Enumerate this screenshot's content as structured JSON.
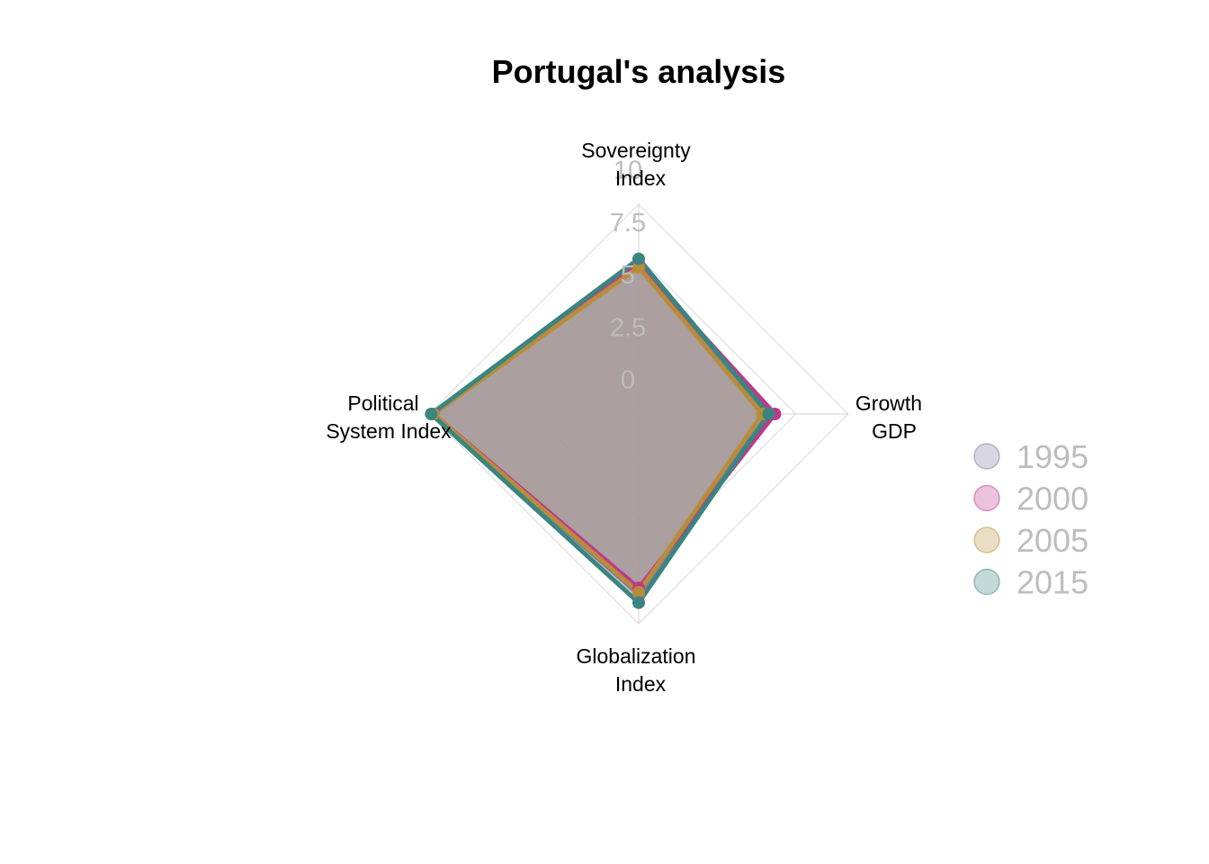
{
  "chart_data": {
    "type": "radar",
    "title": "Portugal's analysis",
    "axes": [
      [
        "Sovereignty",
        "Index"
      ],
      [
        "Growth",
        "GDP"
      ],
      [
        "Globalization",
        "Index"
      ],
      [
        "Political",
        "System Index"
      ]
    ],
    "axis_order": [
      "top",
      "right",
      "bottom",
      "left"
    ],
    "range": [
      0,
      10
    ],
    "ticks": [
      "0",
      "2.5",
      "5",
      "7.5",
      "10"
    ],
    "tick_values": [
      0,
      2.5,
      5,
      7.5,
      10
    ],
    "grid": true,
    "legend_position": "right",
    "series": [
      {
        "name": "1995",
        "color": "#7d78a0",
        "values": [
          7.2,
          6.2,
          8.6,
          9.8
        ]
      },
      {
        "name": "2000",
        "color": "#c0388a",
        "values": [
          7.1,
          6.5,
          8.3,
          9.8
        ]
      },
      {
        "name": "2005",
        "color": "#b88d3a",
        "values": [
          7.0,
          5.9,
          8.5,
          9.8
        ]
      },
      {
        "name": "2015",
        "color": "#3a8580",
        "values": [
          7.4,
          6.2,
          9.0,
          9.9
        ]
      }
    ],
    "fill_color": "#a89a9a"
  }
}
